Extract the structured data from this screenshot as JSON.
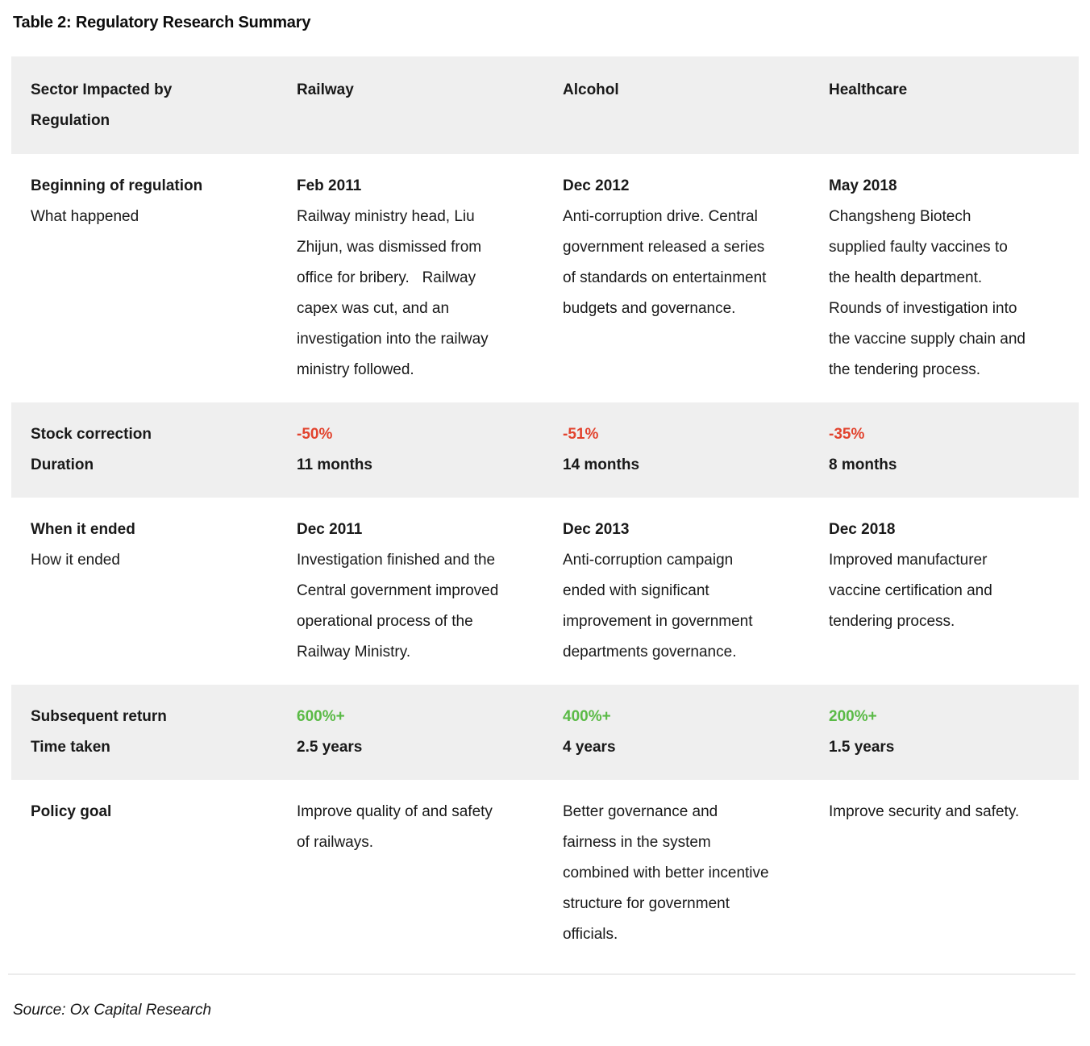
{
  "page": {
    "title": "Table 2: Regulatory Research Summary",
    "source": "Source: Ox Capital Research"
  },
  "colors": {
    "band_background": "#efefef",
    "negative_value": "#e2432e",
    "positive_value": "#5aba46",
    "text": "#191919"
  },
  "table": {
    "header": {
      "label": "Sector Impacted by Regulation",
      "columns": [
        "Railway",
        "Alcohol",
        "Healthcare"
      ]
    },
    "rows": [
      {
        "label": "Beginning of regulation",
        "sublabel": "What happened",
        "cells": [
          {
            "headline": "Feb 2011",
            "body": "Railway ministry head, Liu Zhijun, was dismissed from office for bribery.   Railway capex was cut, and an investigation into the railway ministry followed."
          },
          {
            "headline": "Dec 2012",
            "body": "Anti-corruption drive. Central government released a series of standards on entertainment budgets and governance."
          },
          {
            "headline": "May 2018",
            "body": "Changsheng Biotech supplied faulty vaccines to the health department.   Rounds of investigation into the vaccine supply chain and the tendering process."
          }
        ]
      },
      {
        "label": "Stock correction",
        "sublabel": "Duration",
        "cells": [
          {
            "headline": "-50%",
            "body": "11 months"
          },
          {
            "headline": "-51%",
            "body": "14 months"
          },
          {
            "headline": "-35%",
            "body": "8 months"
          }
        ]
      },
      {
        "label": "When it ended",
        "sublabel": "How it ended",
        "cells": [
          {
            "headline": "Dec 2011",
            "body": "Investigation finished and the Central government improved operational process of the Railway Ministry."
          },
          {
            "headline": "Dec 2013",
            "body": "Anti-corruption campaign ended with significant improvement in government departments governance."
          },
          {
            "headline": "Dec 2018",
            "body": "Improved manufacturer vaccine certification and tendering process."
          }
        ]
      },
      {
        "label": "Subsequent return",
        "sublabel": "Time taken",
        "cells": [
          {
            "headline": "600%+",
            "body": "2.5 years"
          },
          {
            "headline": "400%+",
            "body": "4 years"
          },
          {
            "headline": "200%+",
            "body": "1.5 years"
          }
        ]
      },
      {
        "label": "Policy goal",
        "cells": [
          {
            "body": "Improve quality of and safety of railways."
          },
          {
            "body": "Better governance and fairness in the system combined with better incentive structure for government officials."
          },
          {
            "body": "Improve security and safety."
          }
        ]
      }
    ]
  }
}
